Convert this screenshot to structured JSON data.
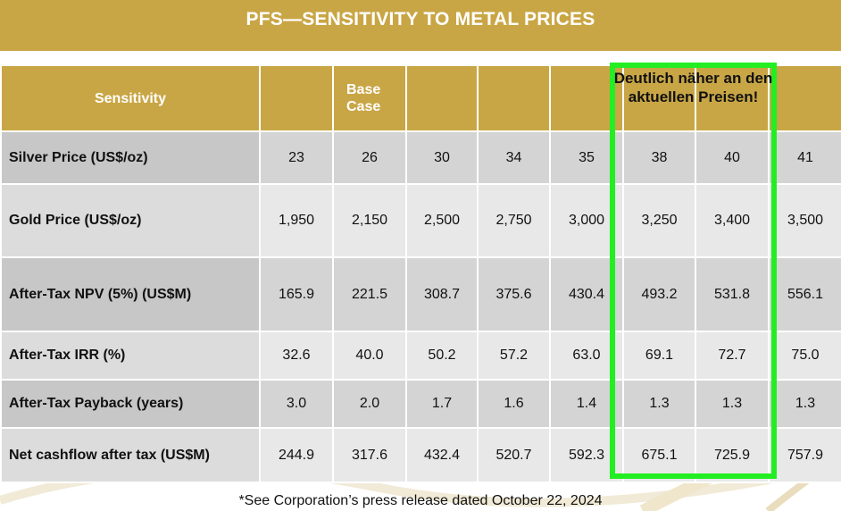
{
  "title": "PFS—SENSITIVITY TO METAL PRICES",
  "table": {
    "header": [
      "Sensitivity",
      "",
      "Base Case",
      "",
      "",
      "",
      "",
      "",
      ""
    ],
    "rows": [
      {
        "label": "Silver Price (US$/oz)",
        "values": [
          "23",
          "26",
          "30",
          "34",
          "35",
          "38",
          "40",
          "41"
        ]
      },
      {
        "label": "Gold Price (US$/oz)",
        "values": [
          "1,950",
          "2,150",
          "2,500",
          "2,750",
          "3,000",
          "3,250",
          "3,400",
          "3,500"
        ]
      },
      {
        "label": "After-Tax NPV (5%) (US$M)",
        "values": [
          "165.9",
          "221.5",
          "308.7",
          "375.6",
          "430.4",
          "493.2",
          "531.8",
          "556.1"
        ]
      },
      {
        "label": "After-Tax IRR (%)",
        "values": [
          "32.6",
          "40.0",
          "50.2",
          "57.2",
          "63.0",
          "69.1",
          "72.7",
          "75.0"
        ]
      },
      {
        "label": "After-Tax Payback (years)",
        "values": [
          "3.0",
          "2.0",
          "1.7",
          "1.6",
          "1.4",
          "1.3",
          "1.3",
          "1.3"
        ]
      },
      {
        "label": "Net cashflow after tax (US$M)",
        "values": [
          "244.9",
          "317.6",
          "432.4",
          "520.7",
          "592.3",
          "675.1",
          "725.9",
          "757.9"
        ]
      }
    ]
  },
  "annotation": "Deutlich näher an den aktuellen Preisen!",
  "annotation_color": "#22ee22",
  "accent_color": "#c9a645",
  "footnote": "*See Corporation’s press release dated October 22, 2024"
}
